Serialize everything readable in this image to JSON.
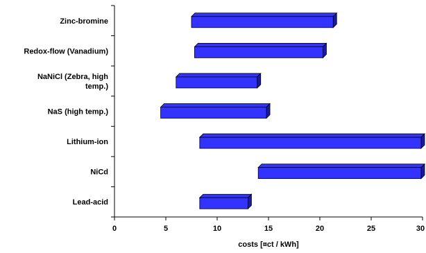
{
  "chart_data": {
    "type": "bar",
    "orientation": "horizontal",
    "categories": [
      "Zinc-bromine",
      "Redox-flow (Vanadium)",
      "NaNiCl (Zebra, high temp.)",
      "NaS (high temp.)",
      "Lithium-ion",
      "NiCd",
      "Lead-acid"
    ],
    "ranges": [
      [
        7.5,
        21.3
      ],
      [
        7.8,
        20.3
      ],
      [
        6.0,
        13.9
      ],
      [
        4.5,
        14.8
      ],
      [
        8.3,
        30
      ],
      [
        14.0,
        30
      ],
      [
        8.3,
        13.0
      ]
    ],
    "xlabel": "costs [¤ct / kWh]",
    "xlim": [
      0,
      30
    ],
    "xticks": [
      "0",
      "5",
      "10",
      "15",
      "20",
      "25",
      "30"
    ],
    "bar_color": "#3333ff",
    "grid": false,
    "legend": "none"
  }
}
